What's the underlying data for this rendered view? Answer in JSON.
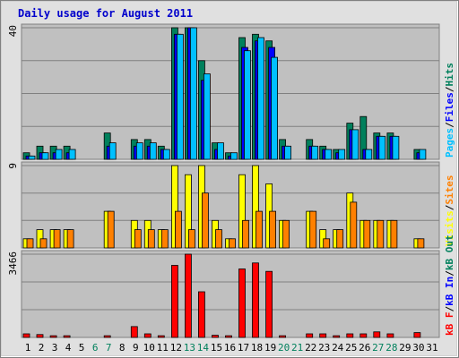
{
  "title": "Daily usage for August 2011",
  "colors": {
    "frame_bg": "#e0e0e0",
    "panel_bg": "#c0c0c0",
    "grid": "#808080",
    "title": "#0000cc",
    "pages": "#00805c",
    "files": "#0000ff",
    "hits": "#00c0ff",
    "visits": "#ffff00",
    "sites": "#ff8000",
    "kbf": "#ff0000",
    "kbin": "#0000ff",
    "kbout": "#00805c",
    "outline": "#000000",
    "day_weekday": "#000000",
    "day_weekend": "#00805c"
  },
  "chart_data": [
    {
      "type": "bar",
      "panel": "top",
      "ymax_label": "40",
      "ylim": [
        0,
        40
      ],
      "right_label": [
        {
          "text": "Pages",
          "color": "#00c0ff"
        },
        {
          "text": "/",
          "color": "#000000"
        },
        {
          "text": "Files",
          "color": "#0000ff"
        },
        {
          "text": "/",
          "color": "#000000"
        },
        {
          "text": "Hits",
          "color": "#00805c"
        }
      ],
      "series": [
        {
          "name": "Pages",
          "color": "#00805c",
          "values": [
            2,
            4,
            4,
            4,
            0,
            0,
            8,
            0,
            6,
            6,
            4,
            40,
            40,
            30,
            5,
            2,
            37,
            38,
            36,
            6,
            0,
            6,
            4,
            3,
            11,
            13,
            8,
            8,
            0,
            3,
            0
          ]
        },
        {
          "name": "Files",
          "color": "#0000ff",
          "values": [
            1,
            2,
            2,
            2,
            0,
            0,
            4,
            0,
            4,
            4,
            3,
            38,
            40,
            24,
            3,
            1,
            34,
            36,
            34,
            4,
            0,
            4,
            3,
            2,
            9,
            3,
            7,
            7,
            0,
            2,
            0
          ]
        },
        {
          "name": "Hits",
          "color": "#00c0ff",
          "values": [
            1,
            2,
            3,
            3,
            0,
            0,
            5,
            0,
            5,
            5,
            3,
            38,
            40,
            26,
            5,
            2,
            33,
            37,
            31,
            4,
            0,
            4,
            3,
            3,
            9,
            3,
            7,
            7,
            0,
            3,
            0
          ]
        }
      ]
    },
    {
      "type": "bar",
      "panel": "middle",
      "ymax_label": "9",
      "ylim": [
        0,
        9
      ],
      "right_label": [
        {
          "text": "Visits",
          "color": "#ffff00"
        },
        {
          "text": "/",
          "color": "#000000"
        },
        {
          "text": "Sites",
          "color": "#ff8000"
        }
      ],
      "series": [
        {
          "name": "Visits",
          "color": "#ffff00",
          "values": [
            1,
            2,
            2,
            2,
            0,
            0,
            4,
            0,
            3,
            3,
            2,
            9,
            8,
            9,
            3,
            1,
            8,
            9,
            7,
            3,
            0,
            4,
            2,
            2,
            6,
            3,
            3,
            3,
            0,
            1,
            0
          ]
        },
        {
          "name": "Sites",
          "color": "#ff8000",
          "values": [
            1,
            1,
            2,
            2,
            0,
            0,
            4,
            0,
            2,
            2,
            2,
            4,
            2,
            6,
            2,
            1,
            3,
            4,
            4,
            3,
            0,
            4,
            1,
            2,
            5,
            3,
            3,
            3,
            0,
            1,
            0
          ]
        }
      ]
    },
    {
      "type": "bar",
      "panel": "bottom",
      "ymax_label": "3466",
      "ylim": [
        0,
        3466
      ],
      "right_label": [
        {
          "text": "kB F",
          "color": "#ff0000"
        },
        {
          "text": "/",
          "color": "#000000"
        },
        {
          "text": "kB In",
          "color": "#0000ff"
        },
        {
          "text": "/",
          "color": "#000000"
        },
        {
          "text": "kB Out",
          "color": "#00805c"
        }
      ],
      "series": [
        {
          "name": "kB F",
          "color": "#ff0000",
          "values": [
            150,
            120,
            70,
            70,
            0,
            0,
            70,
            0,
            450,
            150,
            70,
            3000,
            3466,
            1900,
            90,
            70,
            2850,
            3100,
            2750,
            70,
            0,
            150,
            150,
            70,
            150,
            150,
            230,
            150,
            0,
            200,
            0
          ]
        }
      ]
    }
  ],
  "x_days": [
    "1",
    "2",
    "3",
    "4",
    "5",
    "6",
    "7",
    "8",
    "9",
    "10",
    "11",
    "12",
    "13",
    "14",
    "15",
    "16",
    "17",
    "18",
    "19",
    "20",
    "21",
    "22",
    "23",
    "24",
    "25",
    "26",
    "27",
    "28",
    "29",
    "30",
    "31"
  ],
  "weekend_days": [
    6,
    7,
    13,
    14,
    20,
    21,
    27,
    28
  ]
}
